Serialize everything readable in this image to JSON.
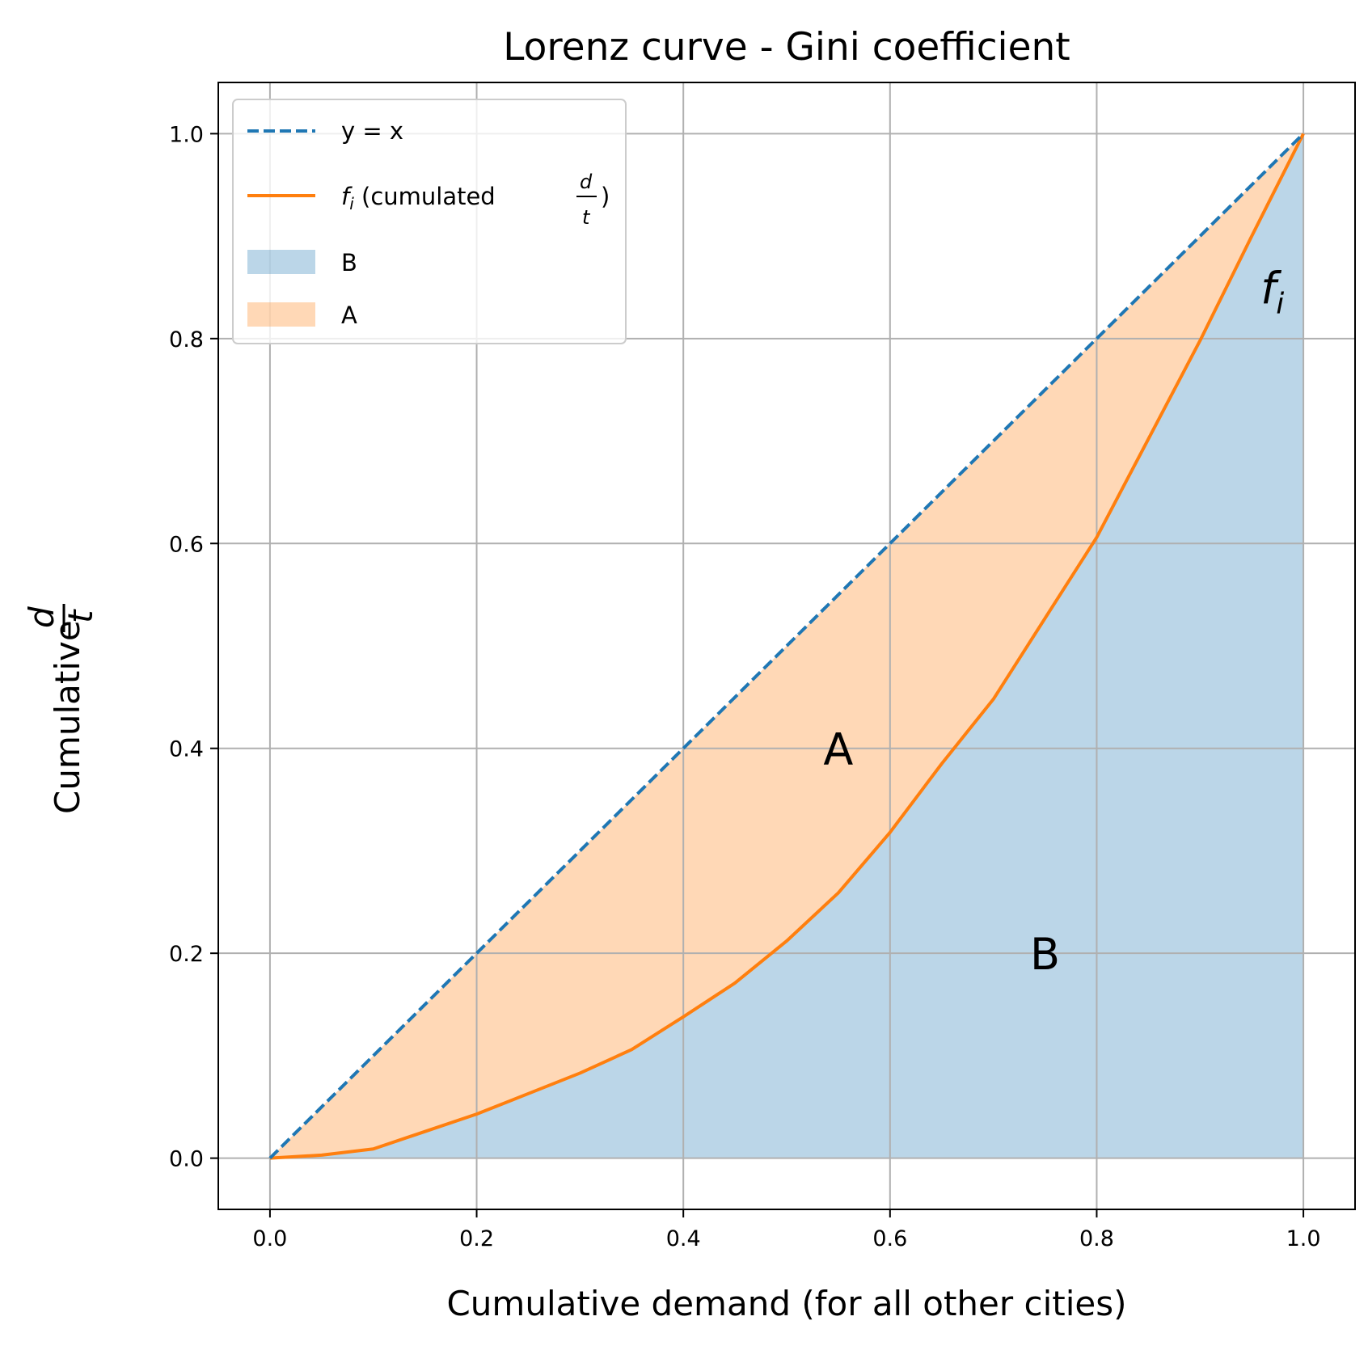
{
  "chart_data": {
    "type": "line",
    "title": "Lorenz curve - Gini coefficient",
    "xlabel": "Cumulative demand (for all other cities)",
    "ylabel": {
      "prefix": "Cumulative",
      "frac_num": "d",
      "frac_den": "t"
    },
    "xlim": [
      -0.05,
      1.05
    ],
    "ylim": [
      -0.05,
      1.05
    ],
    "xticks": [
      "0.0",
      "0.2",
      "0.4",
      "0.6",
      "0.8",
      "1.0"
    ],
    "yticks": [
      "0.0",
      "0.2",
      "0.4",
      "0.6",
      "0.8",
      "1.0"
    ],
    "grid": true,
    "legend_position": "top-left",
    "series": [
      {
        "key": "diagonal",
        "style": "dashed",
        "color": "#1f77b4",
        "x": [
          0.0,
          1.0
        ],
        "y": [
          0.0,
          1.0
        ]
      },
      {
        "key": "lorenz",
        "style": "solid",
        "color": "#ff7f0e",
        "x": [
          0.0,
          0.05,
          0.1,
          0.15,
          0.2,
          0.25,
          0.3,
          0.35,
          0.4,
          0.45,
          0.5,
          0.55,
          0.6,
          0.65,
          0.7,
          0.75,
          0.8,
          0.85,
          0.9,
          0.95,
          1.0
        ],
        "y": [
          0.0,
          0.003,
          0.009,
          0.026,
          0.043,
          0.063,
          0.083,
          0.106,
          0.138,
          0.171,
          0.212,
          0.259,
          0.318,
          0.385,
          0.448,
          0.527,
          0.606,
          0.702,
          0.798,
          0.9,
          1.0
        ]
      }
    ],
    "areas": [
      {
        "key": "B",
        "color": "#1f77b4",
        "opacity": 0.3,
        "between": [
          "lorenz",
          "axis"
        ]
      },
      {
        "key": "A",
        "color": "#ff7f0e",
        "opacity": 0.3,
        "between": [
          "diagonal",
          "lorenz"
        ]
      }
    ],
    "legend": [
      {
        "kind": "dashed",
        "color": "#1f77b4",
        "label": "y = x"
      },
      {
        "kind": "line",
        "color": "#ff7f0e",
        "label_italic": "f",
        "label_sub": "i",
        "label_text": " (cumulated ",
        "label_frac_num": "d",
        "label_frac_den": "t",
        "label_close": ")"
      },
      {
        "kind": "patch",
        "color": "#1f77b4",
        "label": "B"
      },
      {
        "kind": "patch",
        "color": "#ff7f0e",
        "label": "A"
      }
    ],
    "annotations": [
      {
        "text": "A",
        "x": 0.55,
        "y": 0.4
      },
      {
        "text": "B",
        "x": 0.75,
        "y": 0.2
      },
      {
        "text_italic": "f",
        "text_sub": "i",
        "x": 0.97,
        "y": 0.85
      }
    ]
  }
}
